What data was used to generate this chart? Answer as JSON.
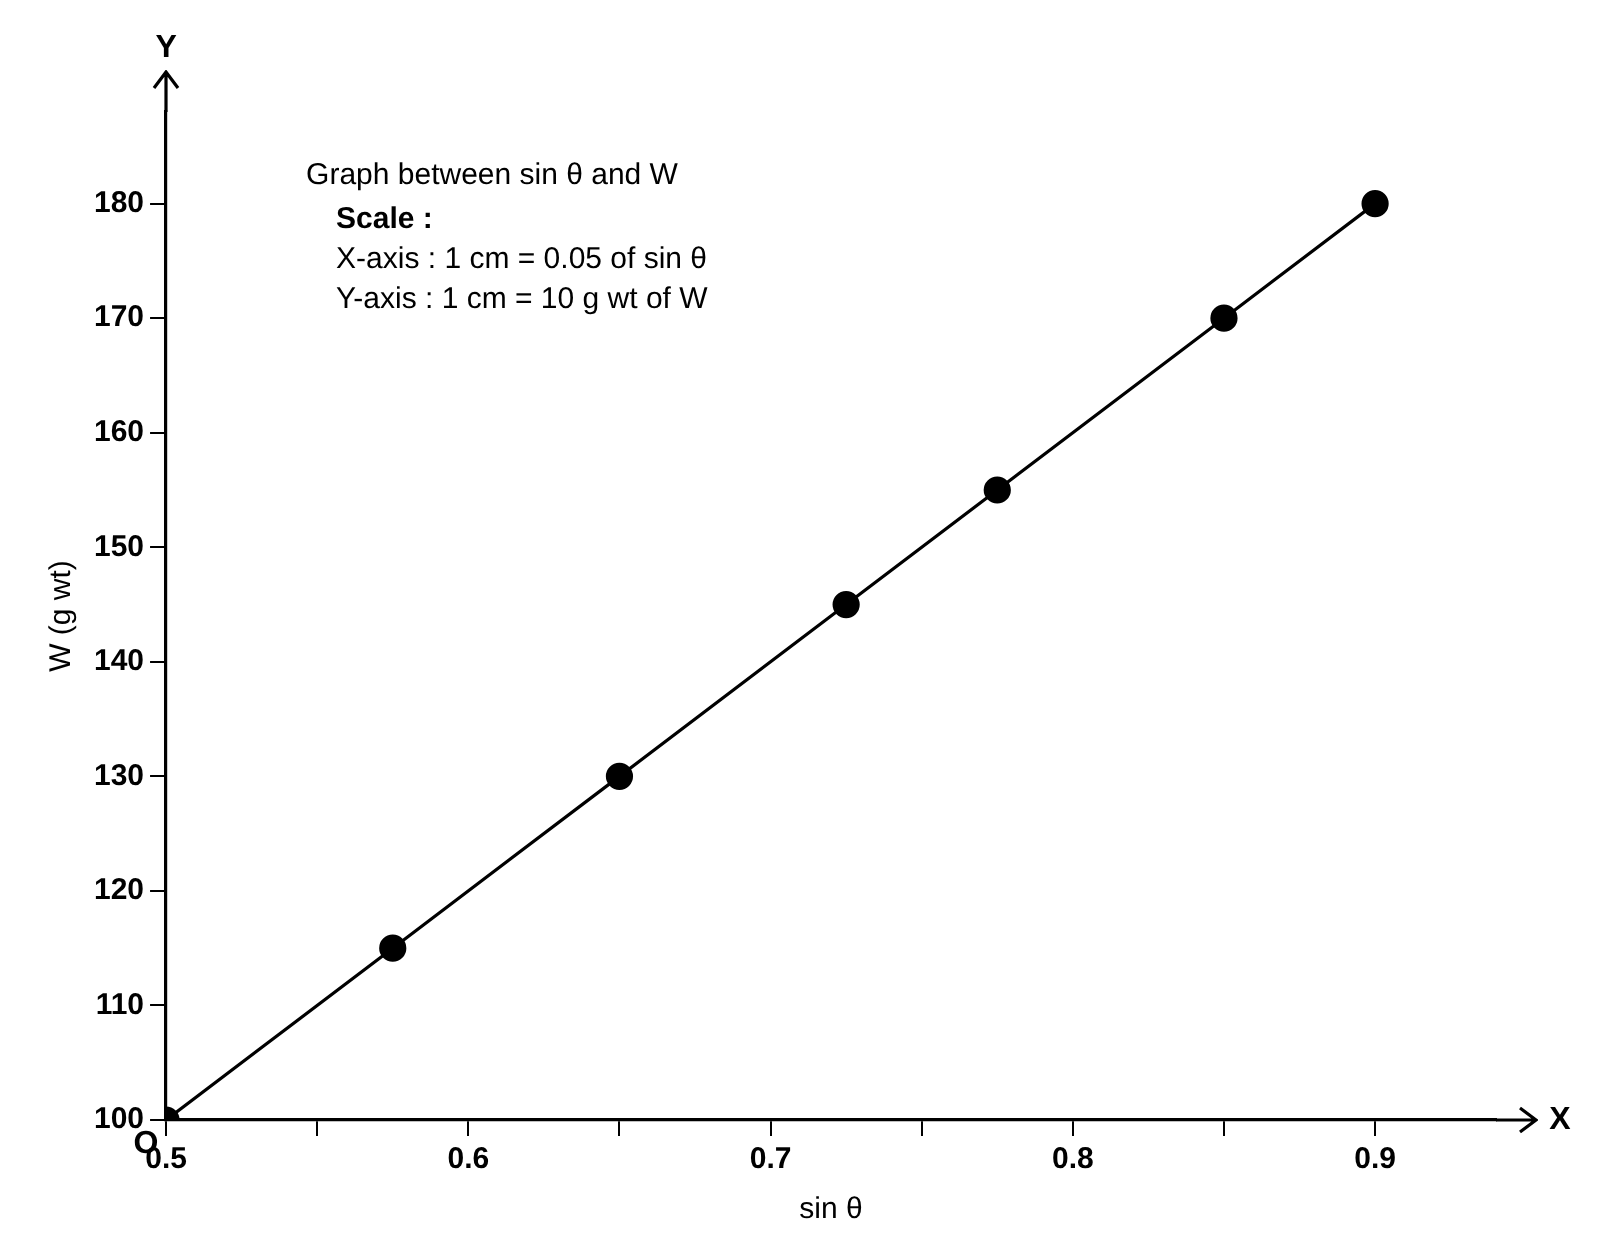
{
  "chart_data": {
    "type": "line",
    "title": "Graph between sin θ and W",
    "xlabel": "sin θ",
    "ylabel": "W (g wt)",
    "x": [
      0.5,
      0.575,
      0.65,
      0.725,
      0.775,
      0.85,
      0.9
    ],
    "series": [
      {
        "color": "#000000",
        "values": [
          100,
          115,
          130,
          145,
          155,
          170,
          180
        ]
      }
    ],
    "marker": "circle",
    "line_style": "solid",
    "grid": false,
    "legend": false,
    "xlim": [
      0.5,
      0.94
    ],
    "xticks": [
      0.5,
      {
        "value": 0.55,
        "label": null
      },
      0.6,
      {
        "value": 0.65,
        "label": null
      },
      0.7,
      {
        "value": 0.75,
        "label": null
      },
      0.8,
      {
        "value": 0.85,
        "label": null
      },
      0.9
    ],
    "ylim": [
      100,
      188
    ],
    "yticks": [
      100,
      110,
      120,
      130,
      140,
      150,
      160,
      170,
      180
    ],
    "annotations": [
      "Scale :",
      "X-axis : 1 cm = 0.05 of sin θ",
      "Y-axis : 1 cm = 10 g wt of W",
      "X",
      "Y",
      "O"
    ]
  }
}
